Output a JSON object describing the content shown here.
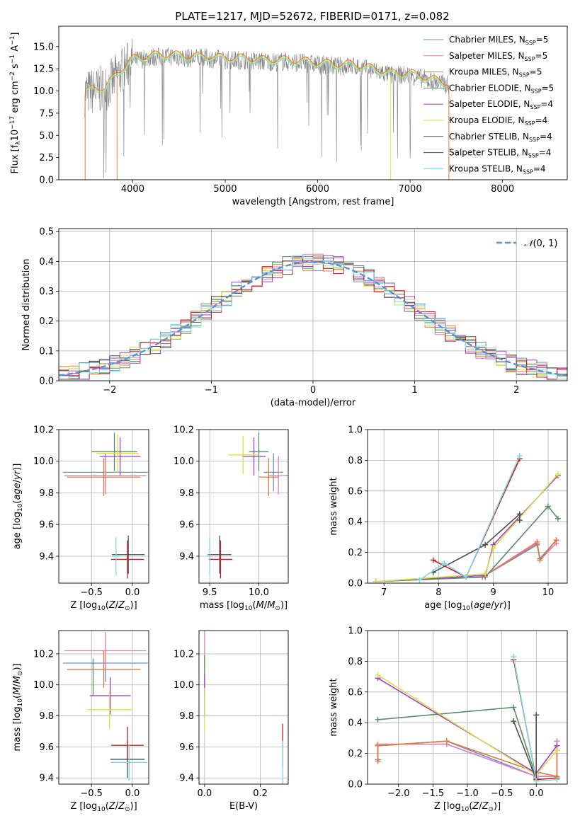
{
  "figure_title": "PLATE=1217, MJD=52672, FIBERID=0171, z=0.082",
  "colors": {
    "Chabrier MILES": "#6a8fd6",
    "Salpeter MILES": "#e07fb9",
    "Kroupa MILES": "#e07b39",
    "Chabrier ELODIE": "#5b8b63",
    "Salpeter ELODIE": "#9c40c8",
    "Kroupa ELODIE": "#d7e04a",
    "Chabrier STELIB": "#4d4d4d",
    "Salpeter STELIB": "#c0201d",
    "Kroupa STELIB": "#7fd9e0",
    "data": "#808080",
    "normal": "#5a8fd6"
  },
  "chart_data": [
    {
      "type": "line",
      "id": "spectrum",
      "title": "PLATE=1217, MJD=52672, FIBERID=0171, z=0.082",
      "xlabel": "wavelength [Angstrom, rest frame]",
      "ylabel": "Flux [f_λ 10^-17 erg cm^-2 s^-1 A^-1]",
      "xlim": [
        3200,
        8700
      ],
      "ylim": [
        0,
        17.3
      ],
      "xticks": [
        "4000",
        "5000",
        "6000",
        "7000",
        "8000"
      ],
      "yticks": [
        "0.0",
        "2.5",
        "5.0",
        "7.5",
        "10.0",
        "12.5",
        "15.0"
      ],
      "legend_position": "top-right",
      "legend": [
        "Chabrier MILES, N_SSP=5",
        "Salpeter MILES, N_SSP=5",
        "Kroupa MILES, N_SSP=5",
        "Chabrier ELODIE, N_SSP=5",
        "Salpeter ELODIE, N_SSP=4",
        "Kroupa ELODIE, N_SSP=4",
        "Chabrier STELIB, N_SSP=4",
        "Salpeter STELIB, N_SSP=4",
        "Kroupa STELIB, N_SSP=4"
      ],
      "series_continuum": {
        "x": [
          3500,
          3700,
          3900,
          4000,
          4200,
          4400,
          4600,
          4800,
          5000,
          5200,
          5400,
          5600,
          5800,
          6000,
          6200,
          6400,
          6600,
          6800,
          7000,
          7200,
          7400
        ],
        "y": [
          9.8,
          10.2,
          12.5,
          13.4,
          13.8,
          13.9,
          13.7,
          13.7,
          13.5,
          13.5,
          13.3,
          13.3,
          13.2,
          13.0,
          12.8,
          12.8,
          12.3,
          11.8,
          11.8,
          11.2,
          10.7
        ]
      }
    },
    {
      "type": "line",
      "id": "residuals",
      "xlabel": "(data-model)/error",
      "ylabel": "Normed distribution",
      "xlim": [
        -2.5,
        2.5
      ],
      "ylim": [
        0,
        0.51
      ],
      "xticks": [
        "−2",
        "−1",
        "0",
        "1",
        "2"
      ],
      "yticks": [
        "0.0",
        "0.1",
        "0.2",
        "0.3",
        "0.4",
        "0.5"
      ],
      "grid": true,
      "legend_position": "top-right",
      "legend": [
        "N(0,1)"
      ]
    },
    {
      "type": "scatter",
      "id": "Z_vs_age",
      "xlabel": "Z [log10(Z/Z⊙)]",
      "ylabel": "age  [log10(age/yr)]",
      "xlim": [
        -0.9,
        0.2
      ],
      "ylim": [
        9.23,
        10.2
      ],
      "xticks": [
        "−0.5",
        "0.0"
      ],
      "yticks": [
        "9.4",
        "9.6",
        "9.8",
        "10.0",
        "10.2"
      ],
      "grid": true,
      "points": [
        {
          "model": "Chabrier MILES",
          "x": -0.33,
          "y": 9.93,
          "xerr": 0.52
        },
        {
          "model": "Salpeter MILES",
          "x": -0.33,
          "y": 9.91,
          "xerr": 0.5
        },
        {
          "model": "Kroupa MILES",
          "x": -0.35,
          "y": 9.9,
          "xerr": 0.45
        },
        {
          "model": "Chabrier ELODIE",
          "x": -0.22,
          "y": 10.06,
          "xerr": 0.28
        },
        {
          "model": "Salpeter ELODIE",
          "x": -0.15,
          "y": 10.03,
          "xerr": 0.25
        },
        {
          "model": "Kroupa ELODIE",
          "x": -0.18,
          "y": 10.05,
          "xerr": 0.26
        },
        {
          "model": "Chabrier STELIB",
          "x": -0.05,
          "y": 9.41,
          "xerr": 0.2
        },
        {
          "model": "Salpeter STELIB",
          "x": -0.06,
          "y": 9.38,
          "xerr": 0.2
        },
        {
          "model": "Kroupa STELIB",
          "x": -0.2,
          "y": 9.4,
          "xerr": 0.05
        }
      ]
    },
    {
      "type": "scatter",
      "id": "mass_vs_age",
      "xlabel": "mass [log10(M/M⊙)]",
      "ylabel": "",
      "xlim": [
        9.39,
        10.3
      ],
      "ylim": [
        9.23,
        10.2
      ],
      "xticks": [
        "9.5",
        "10.0"
      ],
      "yticks": [
        "9.4",
        "9.6",
        "9.8",
        "10.0",
        "10.2"
      ],
      "grid": true,
      "points": [
        {
          "model": "Chabrier MILES",
          "x": 10.15,
          "y": 9.93,
          "xerr": 0.1
        },
        {
          "model": "Salpeter MILES",
          "x": 10.2,
          "y": 9.91,
          "xerr": 0.1
        },
        {
          "model": "Kroupa MILES",
          "x": 10.1,
          "y": 9.9,
          "xerr": 0.1
        },
        {
          "model": "Chabrier ELODIE",
          "x": 10.0,
          "y": 10.06,
          "xerr": 0.1
        },
        {
          "model": "Salpeter ELODIE",
          "x": 9.95,
          "y": 10.03,
          "xerr": 0.12
        },
        {
          "model": "Kroupa ELODIE",
          "x": 9.84,
          "y": 10.04,
          "xerr": 0.15
        },
        {
          "model": "Chabrier STELIB",
          "x": 9.6,
          "y": 9.41,
          "xerr": 0.12
        },
        {
          "model": "Salpeter STELIB",
          "x": 9.61,
          "y": 9.38,
          "xerr": 0.12
        },
        {
          "model": "Kroupa STELIB",
          "x": 9.5,
          "y": 9.4,
          "xerr": 0.03
        }
      ]
    },
    {
      "type": "line",
      "id": "age_vs_massweight",
      "xlabel": "age  [log10(age/yr)]",
      "ylabel": "mass weight",
      "xlim": [
        6.7,
        10.35
      ],
      "ylim": [
        0,
        1.0
      ],
      "xticks": [
        "7",
        "8",
        "9",
        "10"
      ],
      "yticks": [
        "0.0",
        "0.2",
        "0.4",
        "0.6",
        "0.8",
        "1.0"
      ],
      "grid": true,
      "series": [
        {
          "model": "Chabrier MILES",
          "x": [
            8.8,
            8.85,
            9.8,
            9.85,
            10.15
          ],
          "y": [
            0.04,
            0.05,
            0.25,
            0.16,
            0.28
          ]
        },
        {
          "model": "Salpeter MILES",
          "x": [
            8.8,
            8.85,
            9.8,
            9.85,
            10.15
          ],
          "y": [
            0.04,
            0.05,
            0.27,
            0.15,
            0.26
          ]
        },
        {
          "model": "Kroupa MILES",
          "x": [
            8.8,
            8.85,
            9.8,
            9.85,
            10.15
          ],
          "y": [
            0.04,
            0.05,
            0.26,
            0.15,
            0.28
          ]
        },
        {
          "model": "Chabrier ELODIE",
          "x": [
            6.85,
            8.85,
            10.0,
            10.18
          ],
          "y": [
            0.01,
            0.04,
            0.5,
            0.42
          ]
        },
        {
          "model": "Salpeter ELODIE",
          "x": [
            6.85,
            8.85,
            9.0,
            10.18
          ],
          "y": [
            0.01,
            0.05,
            0.25,
            0.7
          ]
        },
        {
          "model": "Kroupa ELODIE",
          "x": [
            6.85,
            8.85,
            9.0,
            10.18
          ],
          "y": [
            0.01,
            0.06,
            0.23,
            0.71
          ]
        },
        {
          "model": "Chabrier STELIB",
          "x": [
            7.9,
            8.85,
            9.48,
            9.48
          ],
          "y": [
            0.07,
            0.25,
            0.45,
            0.41
          ]
        },
        {
          "model": "Salpeter STELIB",
          "x": [
            7.9,
            8.5,
            9.48
          ],
          "y": [
            0.15,
            0.04,
            0.81
          ]
        },
        {
          "model": "Kroupa STELIB",
          "x": [
            7.65,
            8.1,
            8.5,
            9.48
          ],
          "y": [
            0.02,
            0.13,
            0.04,
            0.83
          ]
        }
      ]
    },
    {
      "type": "scatter",
      "id": "Z_vs_mass",
      "xlabel": "Z [log10(Z/Z⊙)]",
      "ylabel": "mass [log10(M/M⊙)]",
      "xlim": [
        -0.9,
        0.2
      ],
      "ylim": [
        9.36,
        10.35
      ],
      "xticks": [
        "−0.5",
        "0.0"
      ],
      "yticks": [
        "9.4",
        "9.6",
        "9.8",
        "10.0",
        "10.2"
      ],
      "grid": true,
      "points": [
        {
          "model": "Chabrier MILES",
          "x": -0.33,
          "y": 10.14,
          "xerr": 0.52
        },
        {
          "model": "Salpeter MILES",
          "x": -0.33,
          "y": 10.22,
          "xerr": 0.5
        },
        {
          "model": "Kroupa MILES",
          "x": -0.35,
          "y": 10.1,
          "xerr": 0.45
        },
        {
          "model": "Chabrier ELODIE",
          "x": -0.48,
          "y": 10.05,
          "xerr": 0.0
        },
        {
          "model": "Salpeter ELODIE",
          "x": -0.27,
          "y": 9.93,
          "xerr": 0.25
        },
        {
          "model": "Kroupa ELODIE",
          "x": -0.28,
          "y": 9.84,
          "xerr": 0.27
        },
        {
          "model": "Chabrier STELIB",
          "x": -0.06,
          "y": 9.52,
          "xerr": 0.21
        },
        {
          "model": "Salpeter STELIB",
          "x": -0.06,
          "y": 9.61,
          "xerr": 0.2
        },
        {
          "model": "Kroupa STELIB",
          "x": -0.04,
          "y": 9.5,
          "xerr": 0.22
        }
      ]
    },
    {
      "type": "scatter",
      "id": "EBV_vs_mass",
      "xlabel": "E(B-V)",
      "ylabel": "",
      "xlim": [
        -0.02,
        0.3
      ],
      "ylim": [
        9.36,
        10.35
      ],
      "xticks": [
        "0.0",
        "0.2"
      ],
      "yticks": [
        "9.4",
        "9.6",
        "9.8",
        "10.0",
        "10.2"
      ],
      "grid": true,
      "points": [
        {
          "model": "Salpeter MILES",
          "x": 0.0,
          "y": 10.22
        },
        {
          "model": "Chabrier ELODIE",
          "x": 0.0,
          "y": 10.05
        },
        {
          "model": "Salpeter ELODIE",
          "x": 0.0,
          "y": 9.93
        },
        {
          "model": "Kroupa ELODIE",
          "x": 0.0,
          "y": 9.84
        },
        {
          "model": "Salpeter STELIB",
          "x": 0.28,
          "y": 9.61
        },
        {
          "model": "Kroupa STELIB",
          "x": 0.28,
          "y": 9.5
        }
      ]
    },
    {
      "type": "line",
      "id": "Z_vs_massweight",
      "xlabel": "Z [log10(Z/Z⊙)]",
      "ylabel": "mass weight",
      "xlim": [
        -2.45,
        0.45
      ],
      "ylim": [
        0,
        1.0
      ],
      "xticks": [
        "−2.0",
        "−1.5",
        "−1.0",
        "−0.5",
        "0.0"
      ],
      "yticks": [
        "0.0",
        "0.2",
        "0.4",
        "0.6",
        "0.8",
        "1.0"
      ],
      "grid": true,
      "series": [
        {
          "model": "Chabrier MILES",
          "x": [
            -2.3,
            -2.3,
            -1.3,
            0.0,
            0.3,
            0.3
          ],
          "y": [
            0.16,
            0.25,
            0.28,
            0.05,
            0.05,
            0.28
          ]
        },
        {
          "model": "Salpeter MILES",
          "x": [
            -2.3,
            -2.3,
            -1.3,
            0.0,
            0.3,
            0.3
          ],
          "y": [
            0.15,
            0.26,
            0.26,
            0.05,
            0.05,
            0.28
          ]
        },
        {
          "model": "Kroupa MILES",
          "x": [
            -2.3,
            -2.3,
            -1.3,
            0.0,
            0.3,
            0.3
          ],
          "y": [
            0.15,
            0.25,
            0.28,
            0.08,
            0.05,
            0.25
          ]
        },
        {
          "model": "Chabrier ELODIE",
          "x": [
            -2.3,
            -0.33,
            0.0
          ],
          "y": [
            0.42,
            0.5,
            0.04
          ]
        },
        {
          "model": "Salpeter ELODIE",
          "x": [
            -2.3,
            0.0,
            0.3
          ],
          "y": [
            0.69,
            0.07,
            0.25
          ]
        },
        {
          "model": "Kroupa ELODIE",
          "x": [
            -2.3,
            0.0,
            0.3
          ],
          "y": [
            0.71,
            0.06,
            0.22
          ]
        },
        {
          "model": "Chabrier STELIB",
          "x": [
            -0.33,
            0.0,
            0.0
          ],
          "y": [
            0.41,
            0.03,
            0.45
          ]
        },
        {
          "model": "Salpeter STELIB",
          "x": [
            -0.33,
            0.0,
            0.3
          ],
          "y": [
            0.81,
            0.03,
            0.04
          ]
        },
        {
          "model": "Kroupa STELIB",
          "x": [
            -0.33,
            0.0,
            0.3
          ],
          "y": [
            0.83,
            0.02,
            0.03
          ]
        }
      ]
    }
  ]
}
